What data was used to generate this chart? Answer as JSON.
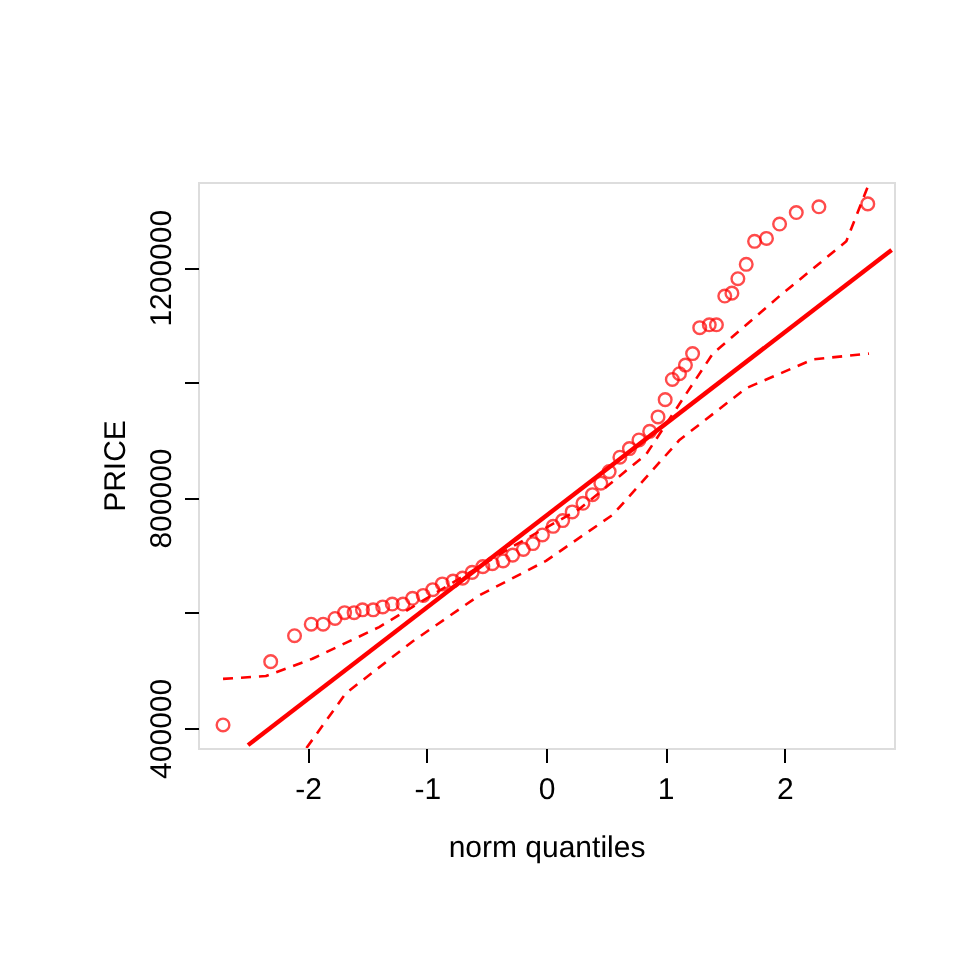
{
  "chart_data": {
    "type": "scatter",
    "xlabel": "norm quantiles",
    "ylabel": "PRICE",
    "xlim": [
      -2.92,
      2.92
    ],
    "ylim": [
      365000,
      1348000
    ],
    "xticks": [
      -2,
      -1,
      0,
      1,
      2
    ],
    "yticks": [
      400000,
      {
        "value": 600000,
        "label": null
      },
      800000,
      {
        "value": 1000000,
        "label": null
      },
      1200000
    ],
    "grid": false,
    "series": [
      {
        "color": "#ff0000",
        "marker": "circle",
        "x": [
          -2.71,
          -2.31,
          -2.11,
          -1.97,
          -1.87,
          -1.77,
          -1.69,
          -1.61,
          -1.54,
          -1.45,
          -1.37,
          -1.29,
          -1.2,
          -1.12,
          -1.03,
          -0.95,
          -0.87,
          -0.78,
          -0.7,
          -0.62,
          -0.53,
          -0.45,
          -0.36,
          -0.28,
          -0.19,
          -0.11,
          -0.03,
          0.06,
          0.14,
          0.22,
          0.31,
          0.39,
          0.46,
          0.53,
          0.62,
          0.7,
          0.78,
          0.87,
          0.94,
          1.0,
          1.06,
          1.12,
          1.17,
          1.23,
          1.29,
          1.37,
          1.43,
          1.5,
          1.56,
          1.61,
          1.68,
          1.75,
          1.85,
          1.96,
          2.1,
          2.29,
          2.7
        ],
        "values": [
          405000,
          515000,
          560000,
          580000,
          580000,
          590000,
          600000,
          600000,
          605000,
          605000,
          610000,
          615000,
          615000,
          625000,
          630000,
          640000,
          650000,
          655000,
          660000,
          670000,
          680000,
          685000,
          690000,
          700000,
          710000,
          720000,
          735000,
          750000,
          760000,
          775000,
          790000,
          805000,
          825000,
          845000,
          870000,
          885000,
          900000,
          915000,
          940000,
          970000,
          1005000,
          1015000,
          1030000,
          1050000,
          1095000,
          1100000,
          1100000,
          1150000,
          1155000,
          1180000,
          1205000,
          1245000,
          1250000,
          1275000,
          1295000,
          1305000,
          1310000
        ]
      },
      {
        "type": "line",
        "color": "#ff0000",
        "marker": "none",
        "line_style": "solid",
        "x": [
          -2.5,
          2.9
        ],
        "values": [
          370000,
          1230000
        ]
      },
      {
        "type": "line",
        "color": "#ff0000",
        "marker": "none",
        "line_style": "dashed",
        "x": [
          -2.71,
          -2.35,
          -1.96,
          -1.4,
          -0.84,
          -0.28,
          0.28,
          0.84,
          1.4,
          1.96,
          2.52,
          2.71
        ],
        "values": [
          485000,
          490000,
          520000,
          575000,
          645000,
          715000,
          780000,
          875000,
          1050000,
          1150000,
          1245000,
          1345000
        ]
      },
      {
        "type": "line",
        "color": "#ff0000",
        "marker": "none",
        "line_style": "dashed",
        "x": [
          -2.01,
          -1.68,
          -1.12,
          -0.56,
          0,
          0.56,
          1.12,
          1.68,
          2.24,
          2.71
        ],
        "values": [
          365000,
          460000,
          550000,
          630000,
          690000,
          770000,
          900000,
          990000,
          1040000,
          1050000
        ]
      }
    ]
  }
}
